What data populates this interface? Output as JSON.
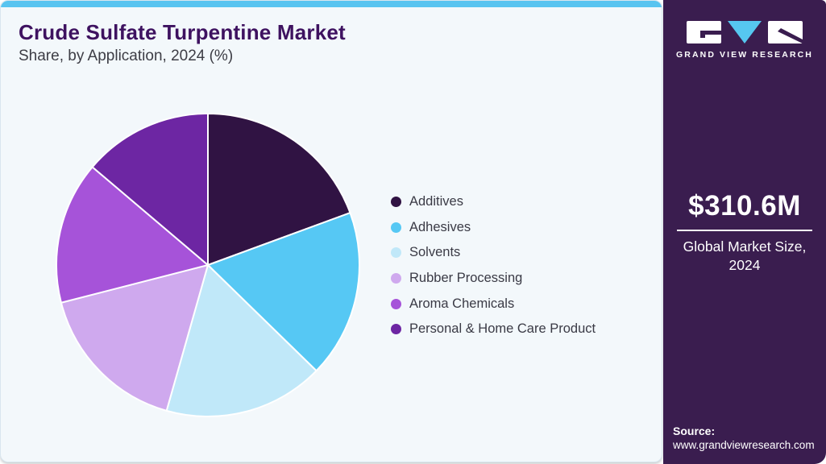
{
  "header": {
    "title": "Crude Sulfate Turpentine Market",
    "subtitle": "Share, by Application, 2024 (%)"
  },
  "chart_data": {
    "type": "pie",
    "title": "Crude Sulfate Turpentine Market Share, by Application, 2024 (%)",
    "labels": [
      "Additives",
      "Adhesives",
      "Solvents",
      "Rubber Processing",
      "Aroma Chemicals",
      "Personal & Home Care Product"
    ],
    "values": [
      19.4,
      17.9,
      17.1,
      16.6,
      15.2,
      13.8
    ],
    "unit": "%",
    "values_are_estimates": true,
    "colors": [
      "#301343",
      "#56c8f4",
      "#c0e8f9",
      "#cfa9ee",
      "#a653d9",
      "#6d26a3"
    ],
    "start_angle_deg": 0,
    "direction": "clockwise",
    "legend_position": "right",
    "labels_on_slices": false
  },
  "sidebar": {
    "brand": "GRAND VIEW RESEARCH",
    "market_size": "$310.6M",
    "market_size_caption": "Global Market Size, 2024",
    "source_label": "Source:",
    "source_url": "www.grandviewresearch.com"
  },
  "theme": {
    "card_background": "#f3f8fb",
    "top_bar": "#58c4f0",
    "sidebar_background": "#3a1d4f",
    "title_color": "#3e1260",
    "text_color": "#3a3a45",
    "logo_cyan": "#56c7f0"
  }
}
